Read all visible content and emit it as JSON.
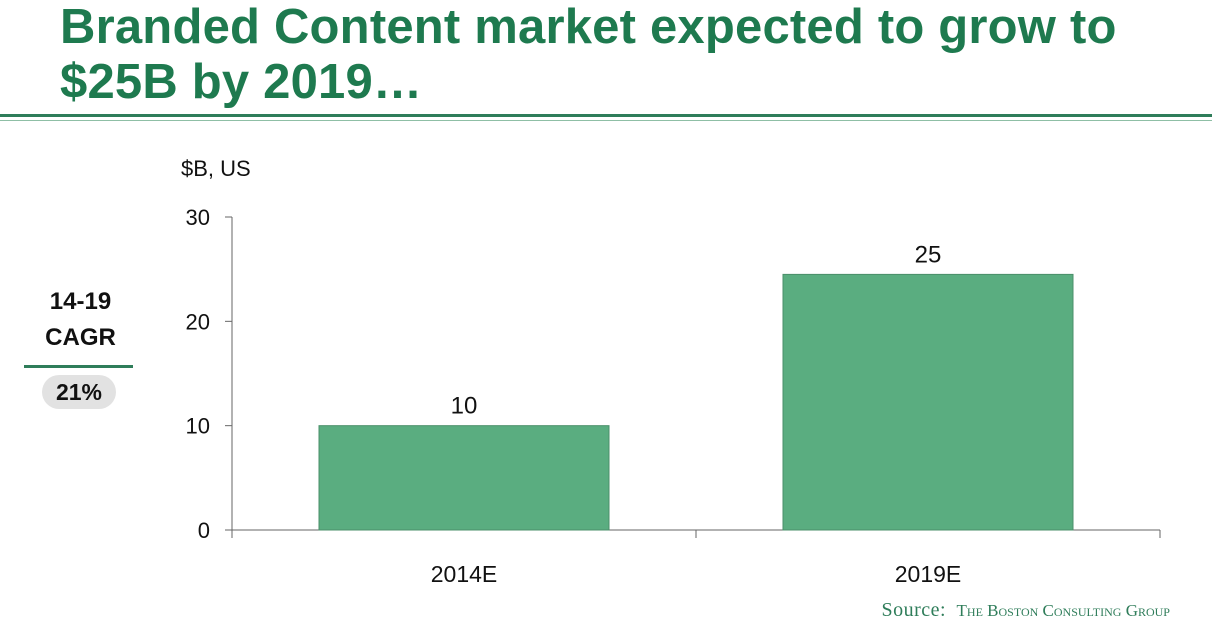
{
  "title_line1": "Branded Content market expected to grow to",
  "title_line2": "$25B by 2019…",
  "unit_label": "$B, US",
  "cagr": {
    "header": "14-19 CAGR",
    "value": "21%"
  },
  "source": {
    "label": "Source:",
    "organization": "The Boston Consulting Group"
  },
  "colors": {
    "title": "#1e7a4f",
    "bar": "#5aad80",
    "rule": "#2f7d5a"
  },
  "chart_data": {
    "type": "bar",
    "categories": [
      "2014E",
      "2019E"
    ],
    "values": [
      10,
      24.5
    ],
    "data_labels": [
      "10",
      "25"
    ],
    "ylim": [
      0,
      30
    ],
    "yticks": [
      0,
      10,
      20,
      30
    ],
    "xlabel": "",
    "ylabel": "",
    "grid": false
  }
}
